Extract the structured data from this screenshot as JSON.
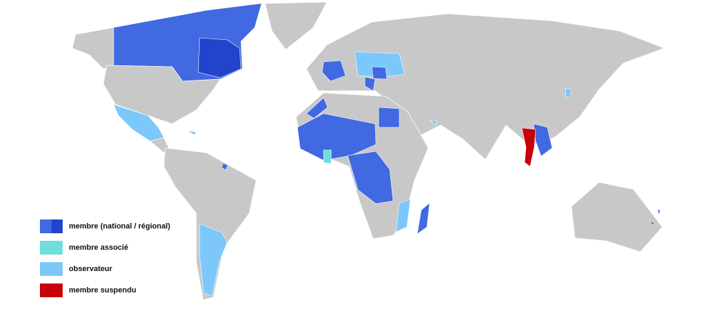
{
  "legend": {
    "items": [
      {
        "label": "membre (national / régional)",
        "colors": [
          "#4169e1",
          "#2244cc"
        ]
      },
      {
        "label": "membre associé",
        "colors": [
          "#6fdedc"
        ]
      },
      {
        "label": "observateur",
        "colors": [
          "#7cc8fa"
        ]
      },
      {
        "label": "membre suspendu",
        "colors": [
          "#c8000a"
        ]
      }
    ]
  },
  "colors": {
    "land": "#c8c8c8",
    "member": "#4169e1",
    "regional_member": "#2244cc",
    "associate": "#6fdedc",
    "observer": "#7cc8fa",
    "suspended": "#c8000a"
  }
}
